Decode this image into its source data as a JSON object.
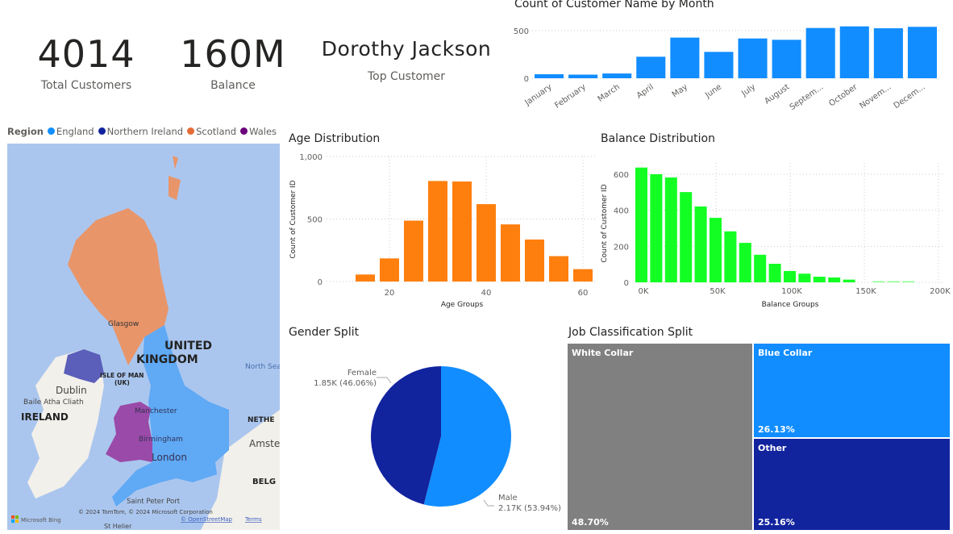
{
  "kpis": [
    {
      "value": "4014",
      "label": "Total Customers"
    },
    {
      "value": "160M",
      "label": "Balance"
    },
    {
      "value": "Dorothy Jackson",
      "label": "Top Customer"
    }
  ],
  "map": {
    "legend_title": "Region",
    "legend": [
      {
        "name": "England",
        "color": "#118DFF"
      },
      {
        "name": "Northern Ireland",
        "color": "#12239E"
      },
      {
        "name": "Scotland",
        "color": "#E66C37"
      },
      {
        "name": "Wales",
        "color": "#6B007B"
      }
    ],
    "labels": {
      "uk1": "UNITED",
      "uk2": "KINGDOM",
      "glasgow": "Glasgow",
      "iom1": "ISLE OF MAN",
      "iom2": "(UK)",
      "dublin": "Dublin",
      "baile": "Baile Atha Cliath",
      "ireland": "IRELAND",
      "manchester": "Manchester",
      "birmingham": "Birmingham",
      "london": "London",
      "north_sea": "North Sea",
      "neth": "NETHE",
      "amst": "Amste",
      "belg": "BELG",
      "spp": "Saint Peter Port",
      "sth": "St Helier"
    },
    "attribution": "© 2024 TomTom, © 2024 Microsoft Corporation",
    "terms": "Terms",
    "osm": "© OpenStreetMap",
    "bing": "Microsoft Bing"
  },
  "chart_data": [
    {
      "type": "bar",
      "title": "Count of Customer Name by Month",
      "categories": [
        "January",
        "February",
        "March",
        "April",
        "May",
        "June",
        "July",
        "August",
        "Septem...",
        "October",
        "Novem...",
        "Decem..."
      ],
      "values": [
        42,
        38,
        50,
        226,
        427,
        277,
        418,
        404,
        528,
        545,
        525,
        540
      ],
      "yticks": [
        "0",
        "500"
      ],
      "ylim": [
        0,
        600
      ],
      "color": "#118DFF",
      "grid": true
    },
    {
      "type": "bar",
      "title": "Age Distribution",
      "xlabel": "Age Groups",
      "ylabel": "Count of Customer ID",
      "x": [
        15,
        20,
        25,
        30,
        35,
        40,
        45,
        50,
        55,
        60
      ],
      "values": [
        56,
        185,
        487,
        804,
        800,
        619,
        457,
        336,
        203,
        99
      ],
      "xticks": [
        "20",
        "40",
        "60"
      ],
      "yticks": [
        "0",
        "500",
        "1,000"
      ],
      "ylim": [
        0,
        1000
      ],
      "color": "#FF7F0E",
      "grid": true
    },
    {
      "type": "bar",
      "title": "Balance Distribution",
      "xlabel": "Balance Groups",
      "ylabel": "Count of Customer ID",
      "x": [
        0,
        10000,
        20000,
        30000,
        40000,
        50000,
        60000,
        70000,
        80000,
        90000,
        100000,
        110000,
        120000,
        130000,
        140000,
        150000,
        160000,
        170000,
        180000
      ],
      "values": [
        637,
        600,
        582,
        501,
        421,
        358,
        283,
        219,
        153,
        103,
        63,
        48,
        31,
        27,
        15,
        0,
        6,
        6,
        6
      ],
      "xticks": [
        "0K",
        "50K",
        "100K",
        "150K",
        "200K"
      ],
      "yticks": [
        "0",
        "200",
        "400",
        "600"
      ],
      "ylim": [
        0,
        650
      ],
      "color": "#13FF24",
      "grid": true
    },
    {
      "type": "pie",
      "title": "Gender Split",
      "slices": [
        {
          "name": "Male",
          "label": "2.17K (53.94%)",
          "value": 53.94,
          "color": "#118DFF"
        },
        {
          "name": "Female",
          "label": "1.85K (46.06%)",
          "value": 46.06,
          "color": "#12239E"
        }
      ]
    },
    {
      "type": "treemap",
      "title": "Job Classification Split",
      "items": [
        {
          "name": "White Collar",
          "pct": "48.70%",
          "value": 48.7,
          "color": "#808080"
        },
        {
          "name": "Blue Collar",
          "pct": "26.13%",
          "value": 26.13,
          "color": "#118DFF"
        },
        {
          "name": "Other",
          "pct": "25.16%",
          "value": 25.16,
          "color": "#12239E"
        }
      ]
    }
  ]
}
